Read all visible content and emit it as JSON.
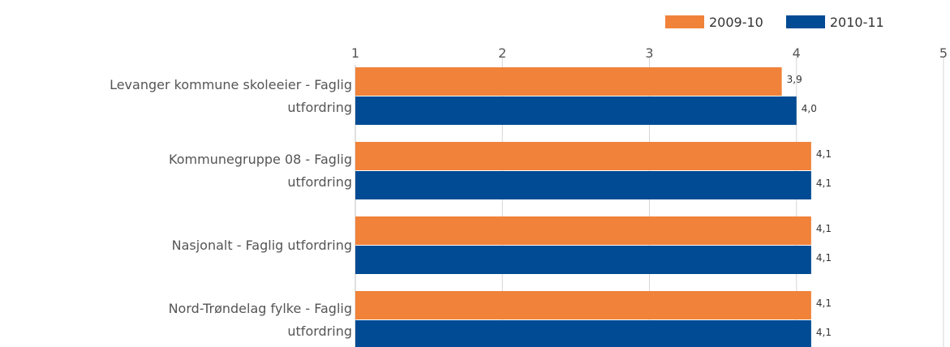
{
  "chart_data": {
    "type": "bar",
    "orientation": "horizontal",
    "categories": [
      [
        "Levanger kommune skoleeier - Faglig",
        "utfordring"
      ],
      [
        "Kommunegruppe 08 - Faglig",
        "utfordring"
      ],
      [
        "Nasjonalt - Faglig utfordring"
      ],
      [
        "Nord-Trøndelag fylke - Faglig",
        "utfordring"
      ]
    ],
    "series": [
      {
        "name": "2009-10",
        "color": "#f0823a",
        "values": [
          3.9,
          4.1,
          4.1,
          4.1
        ],
        "labels": [
          "3,9",
          "4,1",
          "4,1",
          "4,1"
        ]
      },
      {
        "name": "2010-11",
        "color": "#004b93",
        "values": [
          4.0,
          4.1,
          4.1,
          4.1
        ],
        "labels": [
          "4,0",
          "4,1",
          "4,1",
          "4,1"
        ]
      }
    ],
    "xlim": [
      1,
      5
    ],
    "xticks": [
      "1",
      "2",
      "3",
      "4",
      "5"
    ],
    "grid": true,
    "legend_position": "top-right",
    "title": "",
    "xlabel": "",
    "ylabel": ""
  }
}
